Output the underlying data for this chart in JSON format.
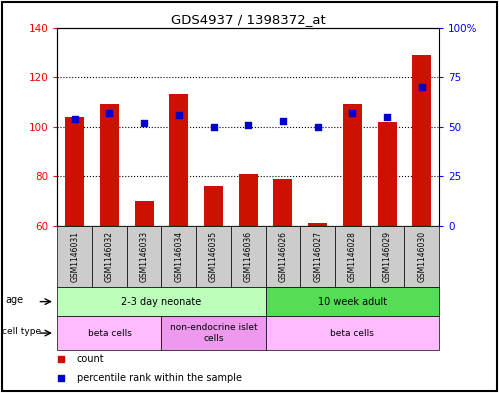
{
  "title": "GDS4937 / 1398372_at",
  "samples": [
    "GSM1146031",
    "GSM1146032",
    "GSM1146033",
    "GSM1146034",
    "GSM1146035",
    "GSM1146036",
    "GSM1146026",
    "GSM1146027",
    "GSM1146028",
    "GSM1146029",
    "GSM1146030"
  ],
  "counts": [
    104,
    109,
    70,
    113,
    76,
    81,
    79,
    61,
    109,
    102,
    129
  ],
  "percentiles": [
    54,
    57,
    52,
    56,
    50,
    51,
    53,
    50,
    57,
    55,
    70
  ],
  "ylim_left": [
    60,
    140
  ],
  "ylim_right": [
    0,
    100
  ],
  "yticks_left": [
    60,
    80,
    100,
    120,
    140
  ],
  "yticks_right": [
    0,
    25,
    50,
    75,
    100
  ],
  "ytick_labels_right": [
    "0",
    "25",
    "50",
    "75",
    "100%"
  ],
  "bar_color": "#cc1100",
  "dot_color": "#0000cc",
  "age_groups": [
    {
      "label": "2-3 day neonate",
      "start": 0,
      "end": 6,
      "color": "#bbffbb"
    },
    {
      "label": "10 week adult",
      "start": 6,
      "end": 11,
      "color": "#55dd55"
    }
  ],
  "cell_type_groups": [
    {
      "label": "beta cells",
      "start": 0,
      "end": 3,
      "color": "#ffbbff"
    },
    {
      "label": "non-endocrine islet\ncells",
      "start": 3,
      "end": 6,
      "color": "#ee99ee"
    },
    {
      "label": "beta cells",
      "start": 6,
      "end": 11,
      "color": "#ffbbff"
    }
  ],
  "legend_items": [
    {
      "color": "#cc1100",
      "label": "count"
    },
    {
      "color": "#0000cc",
      "label": "percentile rank within the sample"
    }
  ],
  "bar_width": 0.55,
  "dot_size": 22
}
